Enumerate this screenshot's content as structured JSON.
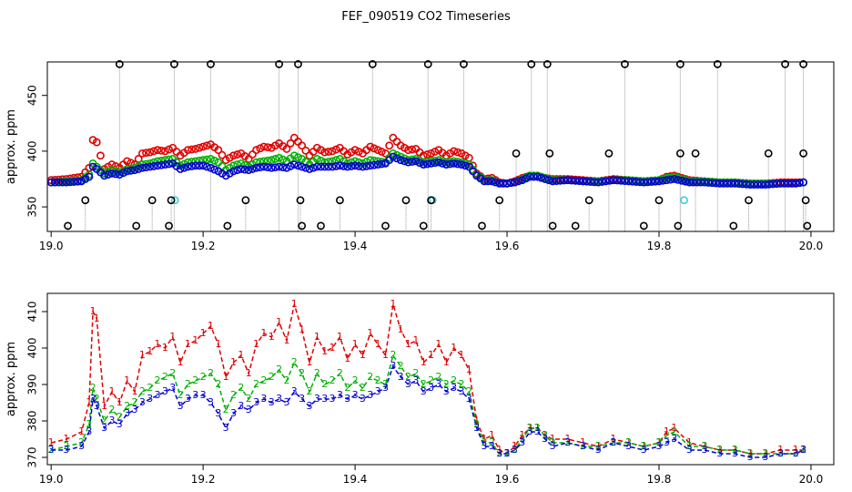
{
  "title": "FEF_090519  CO2 Timeseries",
  "colors": {
    "black": "#000000",
    "red": "#e00000",
    "green": "#00b000",
    "blue": "#0000d0",
    "cyan": "#30d0e0",
    "gray": "#9a9a9a"
  },
  "chart_data": [
    {
      "type": "scatter",
      "title": "",
      "ylabel": "approx. ppm",
      "xlabel": "",
      "xlim": [
        18.995,
        20.03
      ],
      "ylim": [
        328,
        480
      ],
      "xticks": [
        19.0,
        19.2,
        19.4,
        19.6,
        19.8,
        20.0
      ],
      "xtick_labels": [
        "19.0",
        "19.2",
        "19.4",
        "19.6",
        "19.8",
        "20.0"
      ],
      "yticks": [
        350,
        400,
        450
      ],
      "ytick_labels": [
        "350",
        "400",
        "450"
      ],
      "black_outliers": {
        "high_value": 478,
        "high_x": [
          19.09,
          19.162,
          19.21,
          19.3,
          19.325,
          19.423,
          19.496,
          19.543,
          19.632,
          19.653,
          19.755,
          19.828,
          19.877,
          19.966,
          19.99
        ],
        "upper_mid_value": 398,
        "upper_mid_x": [
          19.612,
          19.656,
          19.734,
          19.828,
          19.848,
          19.944,
          19.99
        ],
        "lower_value": 356,
        "lower_x": [
          19.045,
          19.133,
          19.158,
          19.256,
          19.328,
          19.38,
          19.467,
          19.5,
          19.59,
          19.708,
          19.8,
          19.918,
          19.993
        ],
        "bottom_value": 333,
        "bottom_x": [
          19.022,
          19.112,
          19.155,
          19.232,
          19.33,
          19.355,
          19.44,
          19.49,
          19.567,
          19.66,
          19.69,
          19.78,
          19.825,
          19.898,
          19.995
        ]
      },
      "cyan_points": {
        "x": [
          19.163,
          19.502,
          19.833
        ],
        "values": [
          356,
          356,
          356
        ]
      },
      "series": [
        {
          "name": "1",
          "color": "red",
          "x": [
            19.0,
            19.02,
            19.04,
            19.05,
            19.055,
            19.06,
            19.07,
            19.08,
            19.09,
            19.1,
            19.11,
            19.12,
            19.13,
            19.14,
            19.15,
            19.16,
            19.17,
            19.18,
            19.19,
            19.2,
            19.21,
            19.22,
            19.23,
            19.24,
            19.25,
            19.26,
            19.27,
            19.28,
            19.29,
            19.3,
            19.31,
            19.32,
            19.33,
            19.34,
            19.35,
            19.36,
            19.37,
            19.38,
            19.39,
            19.4,
            19.41,
            19.42,
            19.43,
            19.44,
            19.45,
            19.46,
            19.47,
            19.48,
            19.49,
            19.5,
            19.51,
            19.52,
            19.53,
            19.54,
            19.55,
            19.56,
            19.57,
            19.58,
            19.59,
            19.6,
            19.61,
            19.62,
            19.63,
            19.64,
            19.65,
            19.66,
            19.68,
            19.7,
            19.72,
            19.74,
            19.76,
            19.78,
            19.8,
            19.81,
            19.82,
            19.84,
            19.86,
            19.88,
            19.9,
            19.92,
            19.94,
            19.96,
            19.98,
            19.99
          ],
          "values": [
            374,
            375,
            377,
            385,
            410,
            408,
            384,
            388,
            385,
            391,
            388,
            398,
            399,
            401,
            400,
            403,
            396,
            401,
            402,
            404,
            406,
            401,
            392,
            396,
            398,
            393,
            401,
            404,
            403,
            407,
            402,
            412,
            405,
            396,
            403,
            399,
            400,
            403,
            397,
            401,
            398,
            404,
            401,
            398,
            412,
            405,
            401,
            402,
            396,
            398,
            401,
            396,
            400,
            398,
            394,
            380,
            375,
            376,
            372,
            371,
            373,
            376,
            378,
            378,
            376,
            375,
            375,
            374,
            373,
            375,
            374,
            373,
            374,
            377,
            378,
            374,
            373,
            372,
            372,
            371,
            371,
            372,
            372,
            372
          ]
        },
        {
          "name": "2",
          "color": "green",
          "x": [
            19.0,
            19.02,
            19.04,
            19.05,
            19.055,
            19.06,
            19.07,
            19.08,
            19.09,
            19.1,
            19.11,
            19.12,
            19.13,
            19.14,
            19.15,
            19.16,
            19.17,
            19.18,
            19.19,
            19.2,
            19.21,
            19.22,
            19.23,
            19.24,
            19.25,
            19.26,
            19.27,
            19.28,
            19.29,
            19.3,
            19.31,
            19.32,
            19.33,
            19.34,
            19.35,
            19.36,
            19.37,
            19.38,
            19.39,
            19.4,
            19.41,
            19.42,
            19.43,
            19.44,
            19.45,
            19.46,
            19.47,
            19.48,
            19.49,
            19.5,
            19.51,
            19.52,
            19.53,
            19.54,
            19.55,
            19.56,
            19.57,
            19.58,
            19.59,
            19.6,
            19.61,
            19.62,
            19.63,
            19.64,
            19.65,
            19.66,
            19.68,
            19.7,
            19.72,
            19.74,
            19.76,
            19.78,
            19.8,
            19.81,
            19.82,
            19.84,
            19.86,
            19.88,
            19.9,
            19.92,
            19.94,
            19.96,
            19.98,
            19.99
          ],
          "values": [
            372,
            373,
            374,
            379,
            389,
            386,
            380,
            383,
            381,
            384,
            385,
            388,
            389,
            391,
            392,
            393,
            387,
            390,
            391,
            392,
            393,
            390,
            383,
            387,
            389,
            386,
            390,
            391,
            392,
            394,
            391,
            396,
            393,
            388,
            393,
            390,
            391,
            393,
            389,
            391,
            389,
            392,
            391,
            390,
            398,
            395,
            392,
            393,
            390,
            391,
            392,
            390,
            391,
            390,
            388,
            379,
            374,
            374,
            371,
            371,
            372,
            375,
            378,
            378,
            376,
            374,
            374,
            373,
            373,
            374,
            374,
            373,
            374,
            376,
            377,
            373,
            373,
            372,
            372,
            371,
            371,
            371,
            371,
            372
          ]
        },
        {
          "name": "3",
          "color": "blue",
          "x": [
            19.0,
            19.02,
            19.04,
            19.05,
            19.055,
            19.06,
            19.07,
            19.08,
            19.09,
            19.1,
            19.11,
            19.12,
            19.13,
            19.14,
            19.15,
            19.16,
            19.17,
            19.18,
            19.19,
            19.2,
            19.21,
            19.22,
            19.23,
            19.24,
            19.25,
            19.26,
            19.27,
            19.28,
            19.29,
            19.3,
            19.31,
            19.32,
            19.33,
            19.34,
            19.35,
            19.36,
            19.37,
            19.38,
            19.39,
            19.4,
            19.41,
            19.42,
            19.43,
            19.44,
            19.45,
            19.46,
            19.47,
            19.48,
            19.49,
            19.5,
            19.51,
            19.52,
            19.53,
            19.54,
            19.55,
            19.56,
            19.57,
            19.58,
            19.59,
            19.6,
            19.61,
            19.62,
            19.63,
            19.64,
            19.65,
            19.66,
            19.68,
            19.7,
            19.72,
            19.74,
            19.76,
            19.78,
            19.8,
            19.81,
            19.82,
            19.84,
            19.86,
            19.88,
            19.9,
            19.92,
            19.94,
            19.96,
            19.98,
            19.99
          ],
          "values": [
            372,
            372,
            373,
            377,
            386,
            384,
            378,
            380,
            379,
            382,
            383,
            385,
            386,
            387,
            388,
            389,
            384,
            386,
            387,
            387,
            385,
            382,
            378,
            382,
            384,
            383,
            385,
            386,
            385,
            386,
            385,
            388,
            386,
            384,
            386,
            386,
            386,
            387,
            386,
            387,
            386,
            387,
            388,
            389,
            395,
            392,
            390,
            391,
            388,
            389,
            390,
            388,
            389,
            388,
            386,
            378,
            373,
            373,
            371,
            371,
            372,
            374,
            377,
            377,
            375,
            373,
            374,
            373,
            372,
            374,
            373,
            372,
            373,
            374,
            375,
            372,
            372,
            371,
            371,
            370,
            370,
            371,
            371,
            372
          ]
        }
      ]
    },
    {
      "type": "line",
      "title": "",
      "ylabel": "approx. ppm",
      "xlabel": "",
      "xlim": [
        18.995,
        20.03
      ],
      "ylim": [
        368,
        415
      ],
      "xticks": [
        19.0,
        19.2,
        19.4,
        19.6,
        19.8,
        20.0
      ],
      "xtick_labels": [
        "19.0",
        "19.2",
        "19.4",
        "19.6",
        "19.8",
        "20.0"
      ],
      "yticks": [
        370,
        380,
        390,
        400,
        410
      ],
      "ytick_labels": [
        "370",
        "380",
        "390",
        "400",
        "410"
      ],
      "series_ref": "same series as scatter panel; marks drawn as numbers 1 (red), 2 (green), 3 (blue)"
    }
  ]
}
